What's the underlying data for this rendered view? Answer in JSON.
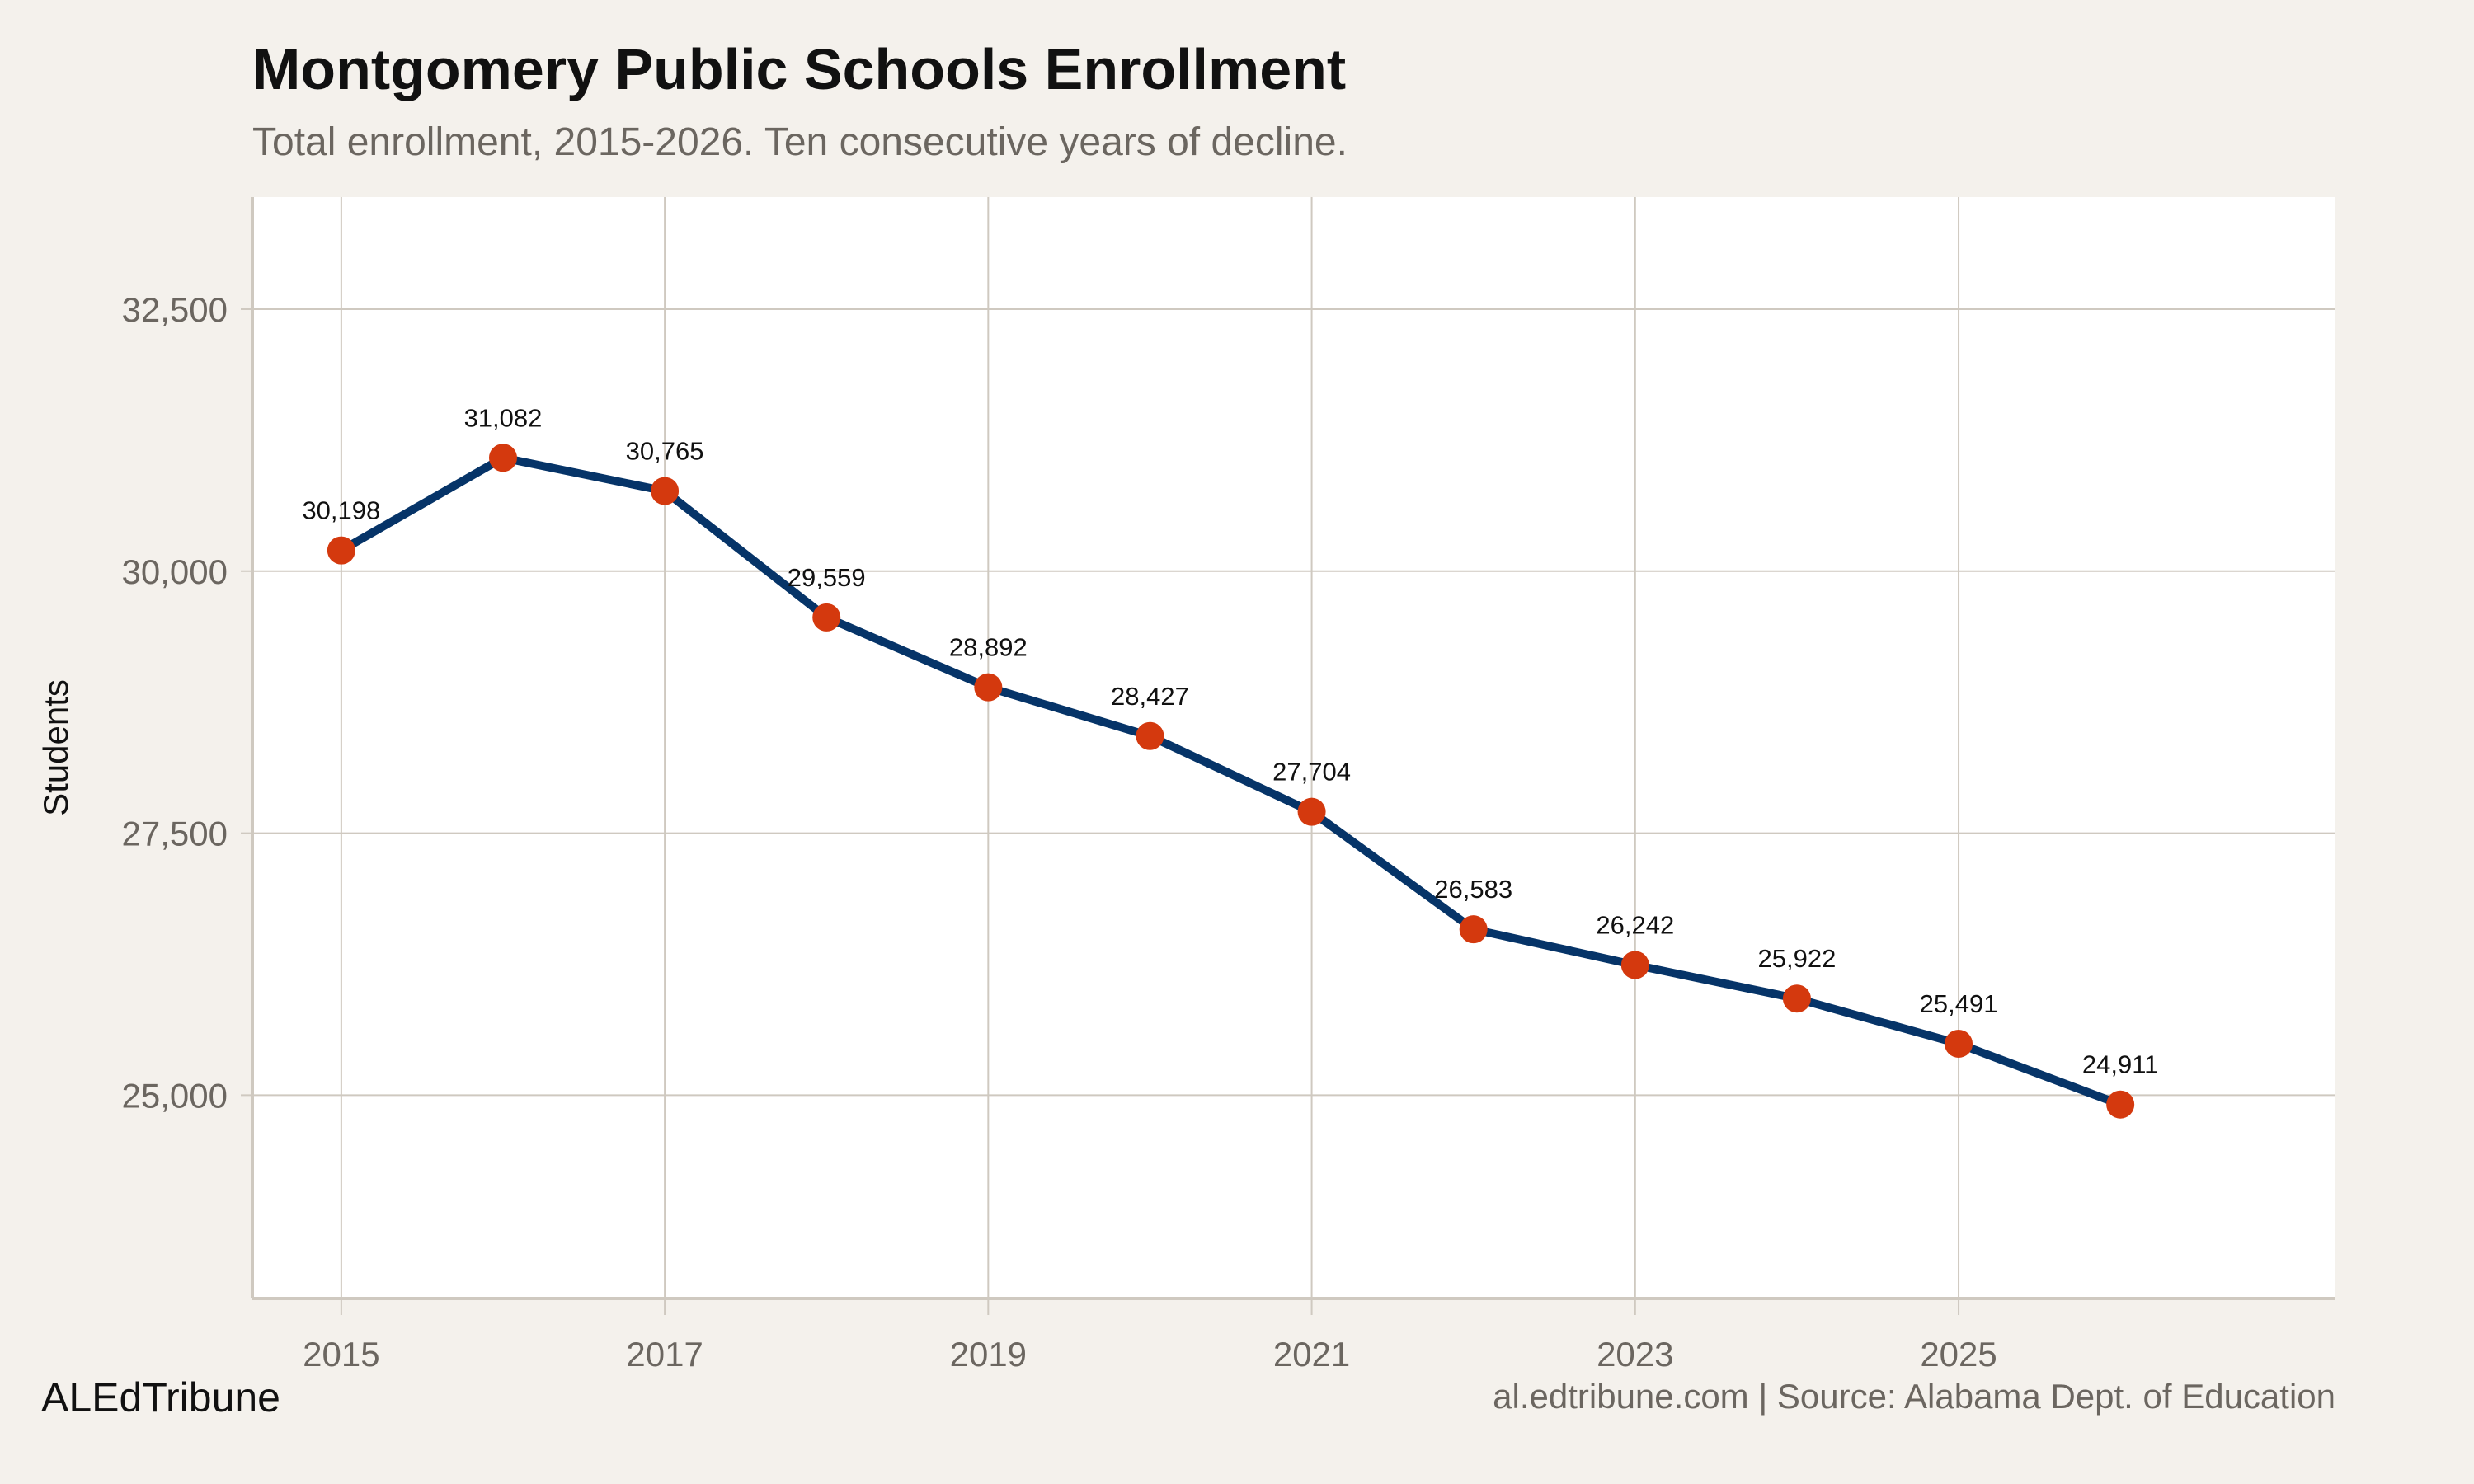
{
  "chart_data": {
    "type": "line",
    "title": "Montgomery Public Schools Enrollment",
    "subtitle": "Total enrollment, 2015-2026. Ten consecutive years of decline.",
    "xlabel": "",
    "ylabel": "Students",
    "x": [
      2015,
      2016,
      2017,
      2018,
      2019,
      2020,
      2021,
      2022,
      2023,
      2024,
      2025,
      2026
    ],
    "values": [
      30198,
      31082,
      30765,
      29559,
      28892,
      28427,
      27704,
      26583,
      26242,
      25922,
      25491,
      24911
    ],
    "data_labels": [
      "30,198",
      "31,082",
      "30,765",
      "29,559",
      "28,892",
      "28,427",
      "27,704",
      "26,583",
      "26,242",
      "25,922",
      "25,491",
      "24,911"
    ],
    "xlim": [
      2014.45,
      2027.33
    ],
    "ylim": [
      23060,
      33570
    ],
    "xticks": [
      2015,
      2017,
      2019,
      2021,
      2023,
      2025
    ],
    "xtick_labels": [
      "2015",
      "2017",
      "2019",
      "2021",
      "2023",
      "2025"
    ],
    "yticks": [
      25000,
      27500,
      30000,
      32500
    ],
    "ytick_labels": [
      "25,000",
      "27,500",
      "30,000",
      "32,500"
    ],
    "grid": true,
    "legend": "none",
    "colors": {
      "background": "#f4f1ec",
      "panel": "#ffffff",
      "grid": "#cfc9c0",
      "line": "#063468",
      "point": "#d4390e"
    }
  },
  "footer": {
    "brand": "ALEdTribune",
    "source": "al.edtribune.com | Source: Alabama Dept. of Education"
  }
}
